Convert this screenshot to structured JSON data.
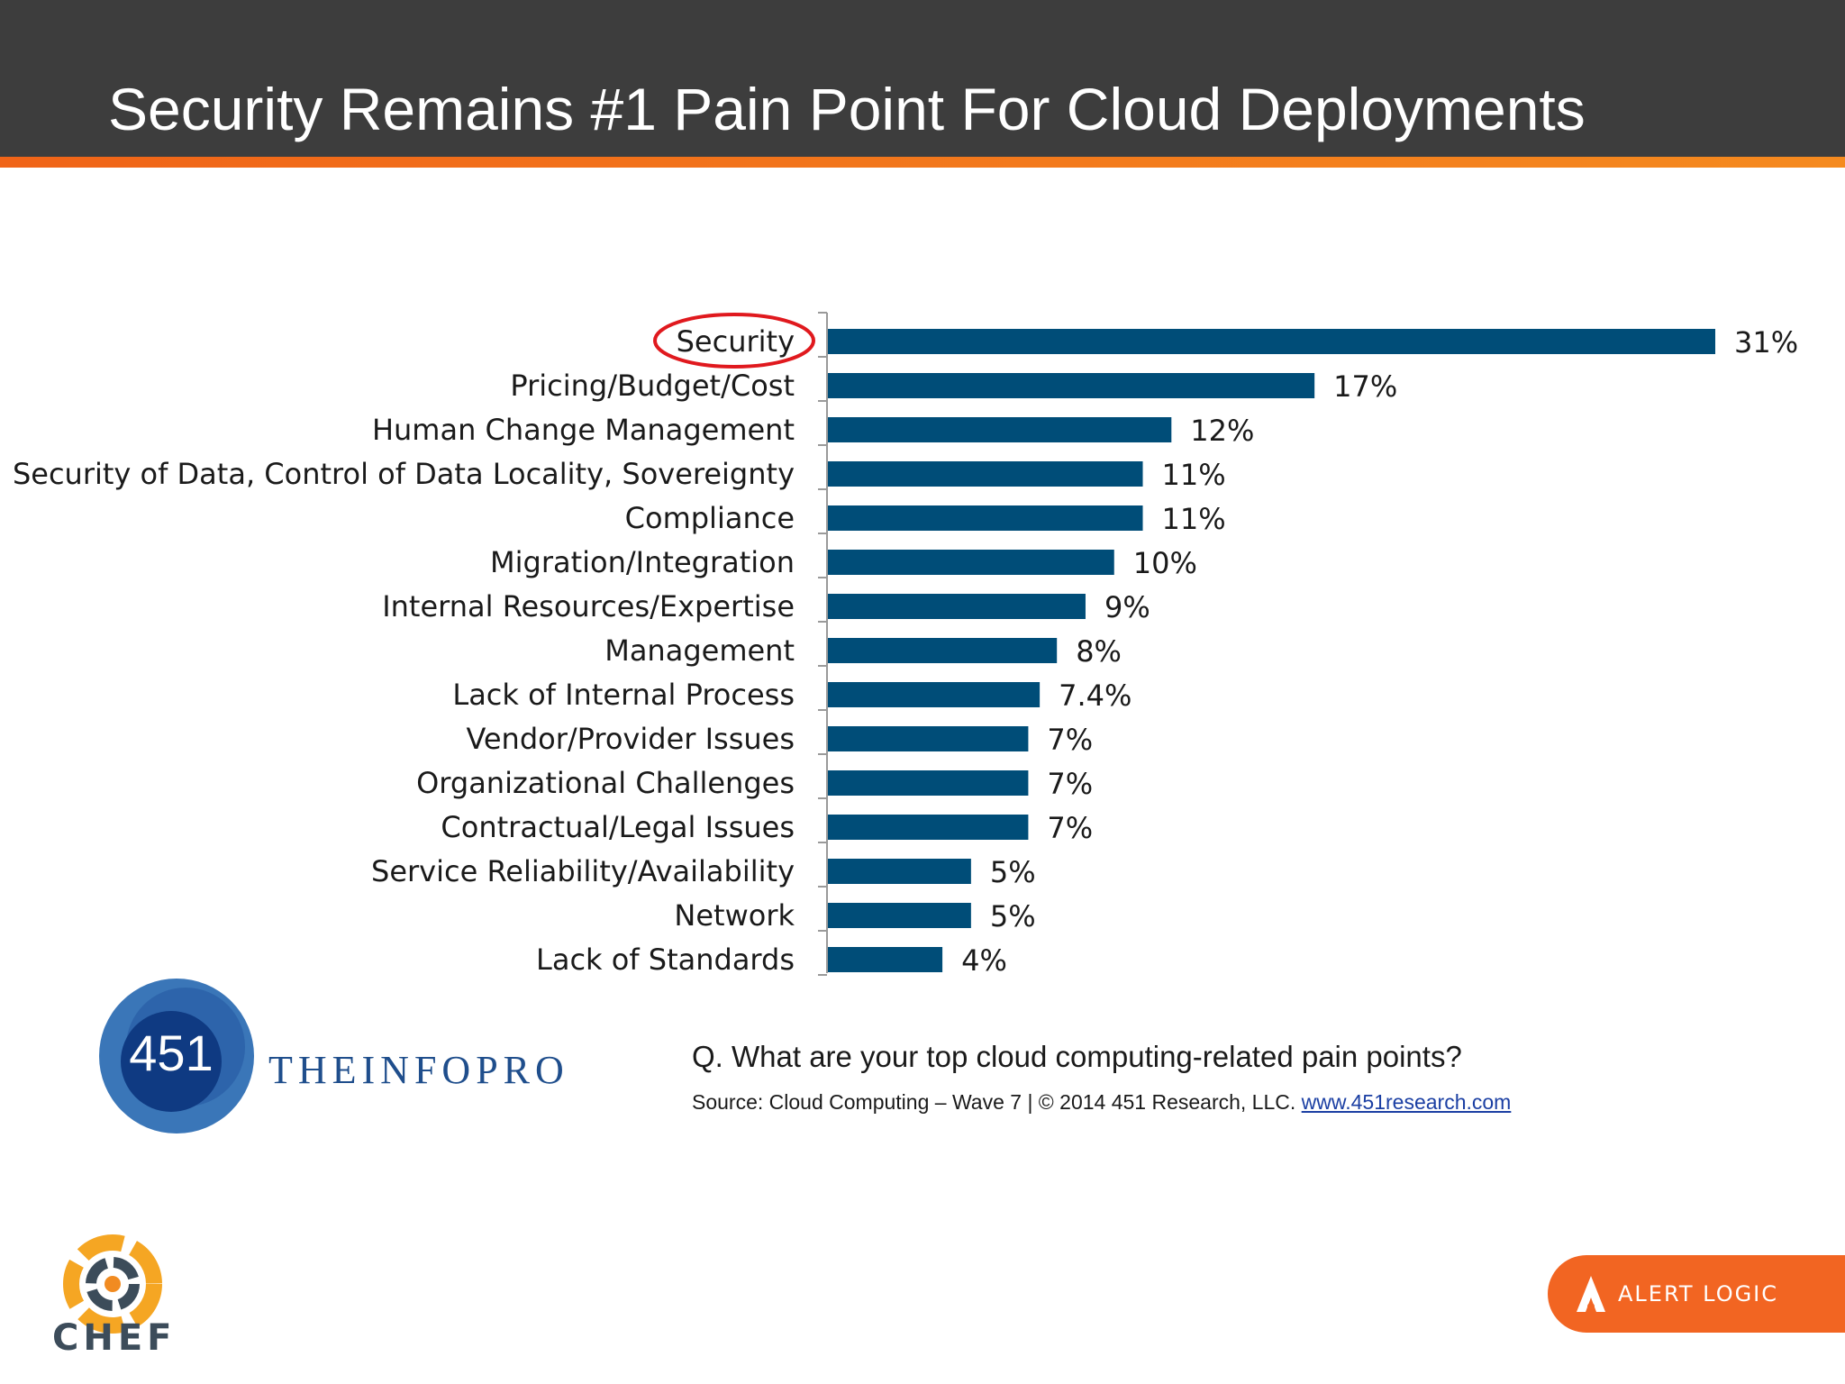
{
  "slide": {
    "title": "Security Remains #1 Pain Point For Cloud Deployments",
    "question": "Q. What are your top cloud computing-related pain points?",
    "source_prefix": "Source: Cloud Computing – Wave 7 | © 2014 451 Research, LLC.",
    "source_link": "www.451research.com"
  },
  "logos": {
    "research_number": "451",
    "research_brand": "THEINFOPRO",
    "chef": "CHEF",
    "alert_logic": "ALERT LOGIC"
  },
  "colors": {
    "bar": "#004d78",
    "header_bg": "#3d3d3d",
    "accent": "#f26522",
    "highlight_ring": "#e0191e"
  },
  "chart_data": {
    "type": "bar",
    "orientation": "horizontal",
    "categories": [
      "Security",
      "Pricing/Budget/Cost",
      "Human Change Management",
      "Security of Data, Control of Data Locality, Sovereignty",
      "Compliance",
      "Migration/Integration",
      "Internal Resources/Expertise",
      "Management",
      "Lack of Internal Process",
      "Vendor/Provider Issues",
      "Organizational Challenges",
      "Contractual/Legal Issues",
      "Service Reliability/Availability",
      "Network",
      "Lack of Standards"
    ],
    "values": [
      31,
      17,
      12,
      11,
      11,
      10,
      9,
      8,
      7.4,
      7,
      7,
      7,
      5,
      5,
      4
    ],
    "value_labels": [
      "31%",
      "17%",
      "12%",
      "11%",
      "11%",
      "10%",
      "9%",
      "8%",
      "7.4%",
      "7%",
      "7%",
      "7%",
      "5%",
      "5%",
      "4%"
    ],
    "xlim": [
      0,
      31
    ],
    "highlighted_category": "Security",
    "title": "",
    "xlabel": "",
    "ylabel": ""
  }
}
